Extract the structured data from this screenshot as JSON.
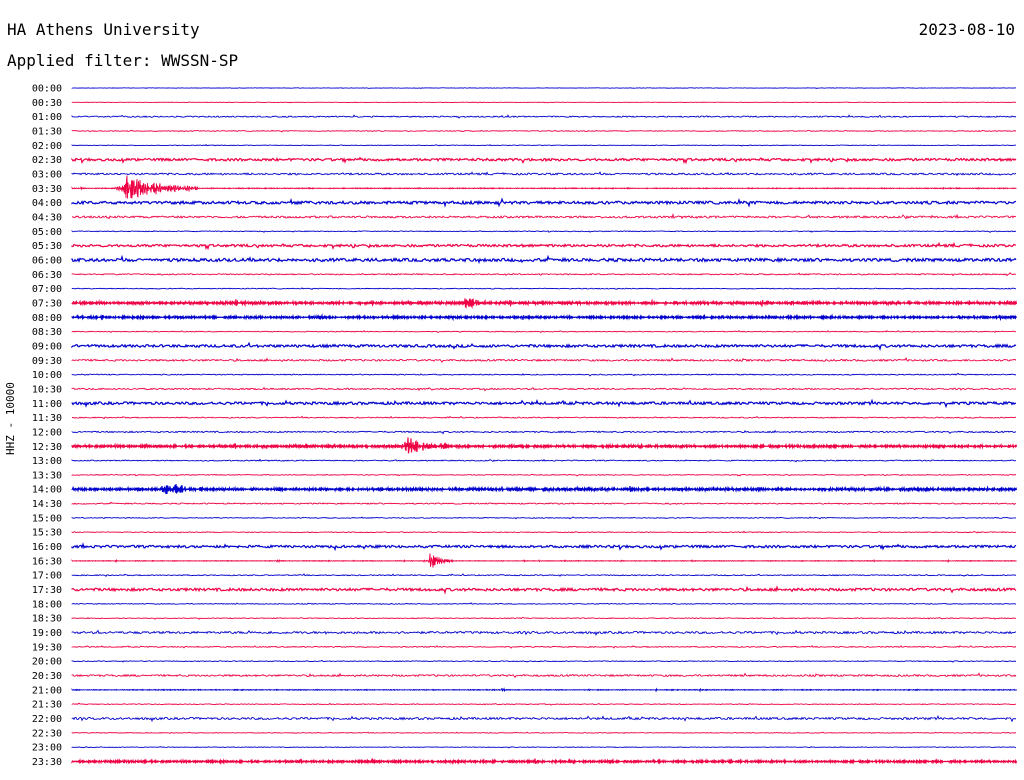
{
  "header": {
    "station": "HA Athens University",
    "date": "2023-08-10",
    "filter_label": "Applied filter: WWSSN-SP"
  },
  "chart_data": {
    "type": "line",
    "title": "HA Athens University",
    "ylabel": "HHZ - 10000",
    "colors": [
      "#0000cc",
      "#ee0044"
    ],
    "rows": [
      "00:00",
      "00:30",
      "01:00",
      "01:30",
      "02:00",
      "02:30",
      "03:00",
      "03:30",
      "04:00",
      "04:30",
      "05:00",
      "05:30",
      "06:00",
      "06:30",
      "07:00",
      "07:30",
      "08:00",
      "08:30",
      "09:00",
      "09:30",
      "10:00",
      "10:30",
      "11:00",
      "11:30",
      "12:00",
      "12:30",
      "13:00",
      "13:30",
      "14:00",
      "14:30",
      "15:00",
      "15:30",
      "16:00",
      "16:30",
      "17:00",
      "17:30",
      "18:00",
      "18:30",
      "19:00",
      "19:30",
      "20:00",
      "20:30",
      "21:00",
      "21:30",
      "22:00",
      "22:30",
      "23:00",
      "23:30"
    ],
    "noise_level": [
      0.2,
      0.2,
      0.6,
      0.4,
      0.3,
      1.2,
      0.9,
      0.5,
      1.4,
      1.0,
      0.4,
      1.2,
      1.5,
      0.6,
      0.4,
      1.5,
      1.2,
      0.4,
      1.3,
      0.9,
      0.5,
      0.7,
      1.3,
      0.5,
      0.7,
      1.4,
      0.5,
      0.4,
      1.5,
      0.6,
      0.4,
      0.4,
      1.2,
      0.4,
      0.5,
      1.3,
      0.4,
      0.4,
      1.1,
      0.5,
      0.4,
      0.9,
      0.5,
      0.4,
      1.1,
      0.3,
      0.3,
      1.2
    ],
    "events": [
      {
        "row": "03:30",
        "minute": 1.5,
        "duration": 2.5,
        "amplitude": 16
      },
      {
        "row": "07:30",
        "minute": 12.5,
        "duration": 0.5,
        "amplitude": 11
      },
      {
        "row": "08:00",
        "minute": 7.8,
        "duration": 0.3,
        "amplitude": 5
      },
      {
        "row": "12:30",
        "minute": 10.5,
        "duration": 1.8,
        "amplitude": 12
      },
      {
        "row": "14:00",
        "minute": 2.8,
        "duration": 1.4,
        "amplitude": 9
      },
      {
        "row": "16:30",
        "minute": 11.3,
        "duration": 0.8,
        "amplitude": 11
      },
      {
        "row": "21:00",
        "minute": 13.6,
        "duration": 0.3,
        "amplitude": 3
      },
      {
        "row": "23:30",
        "minute": 15.7,
        "duration": 0.3,
        "amplitude": 3
      }
    ]
  }
}
